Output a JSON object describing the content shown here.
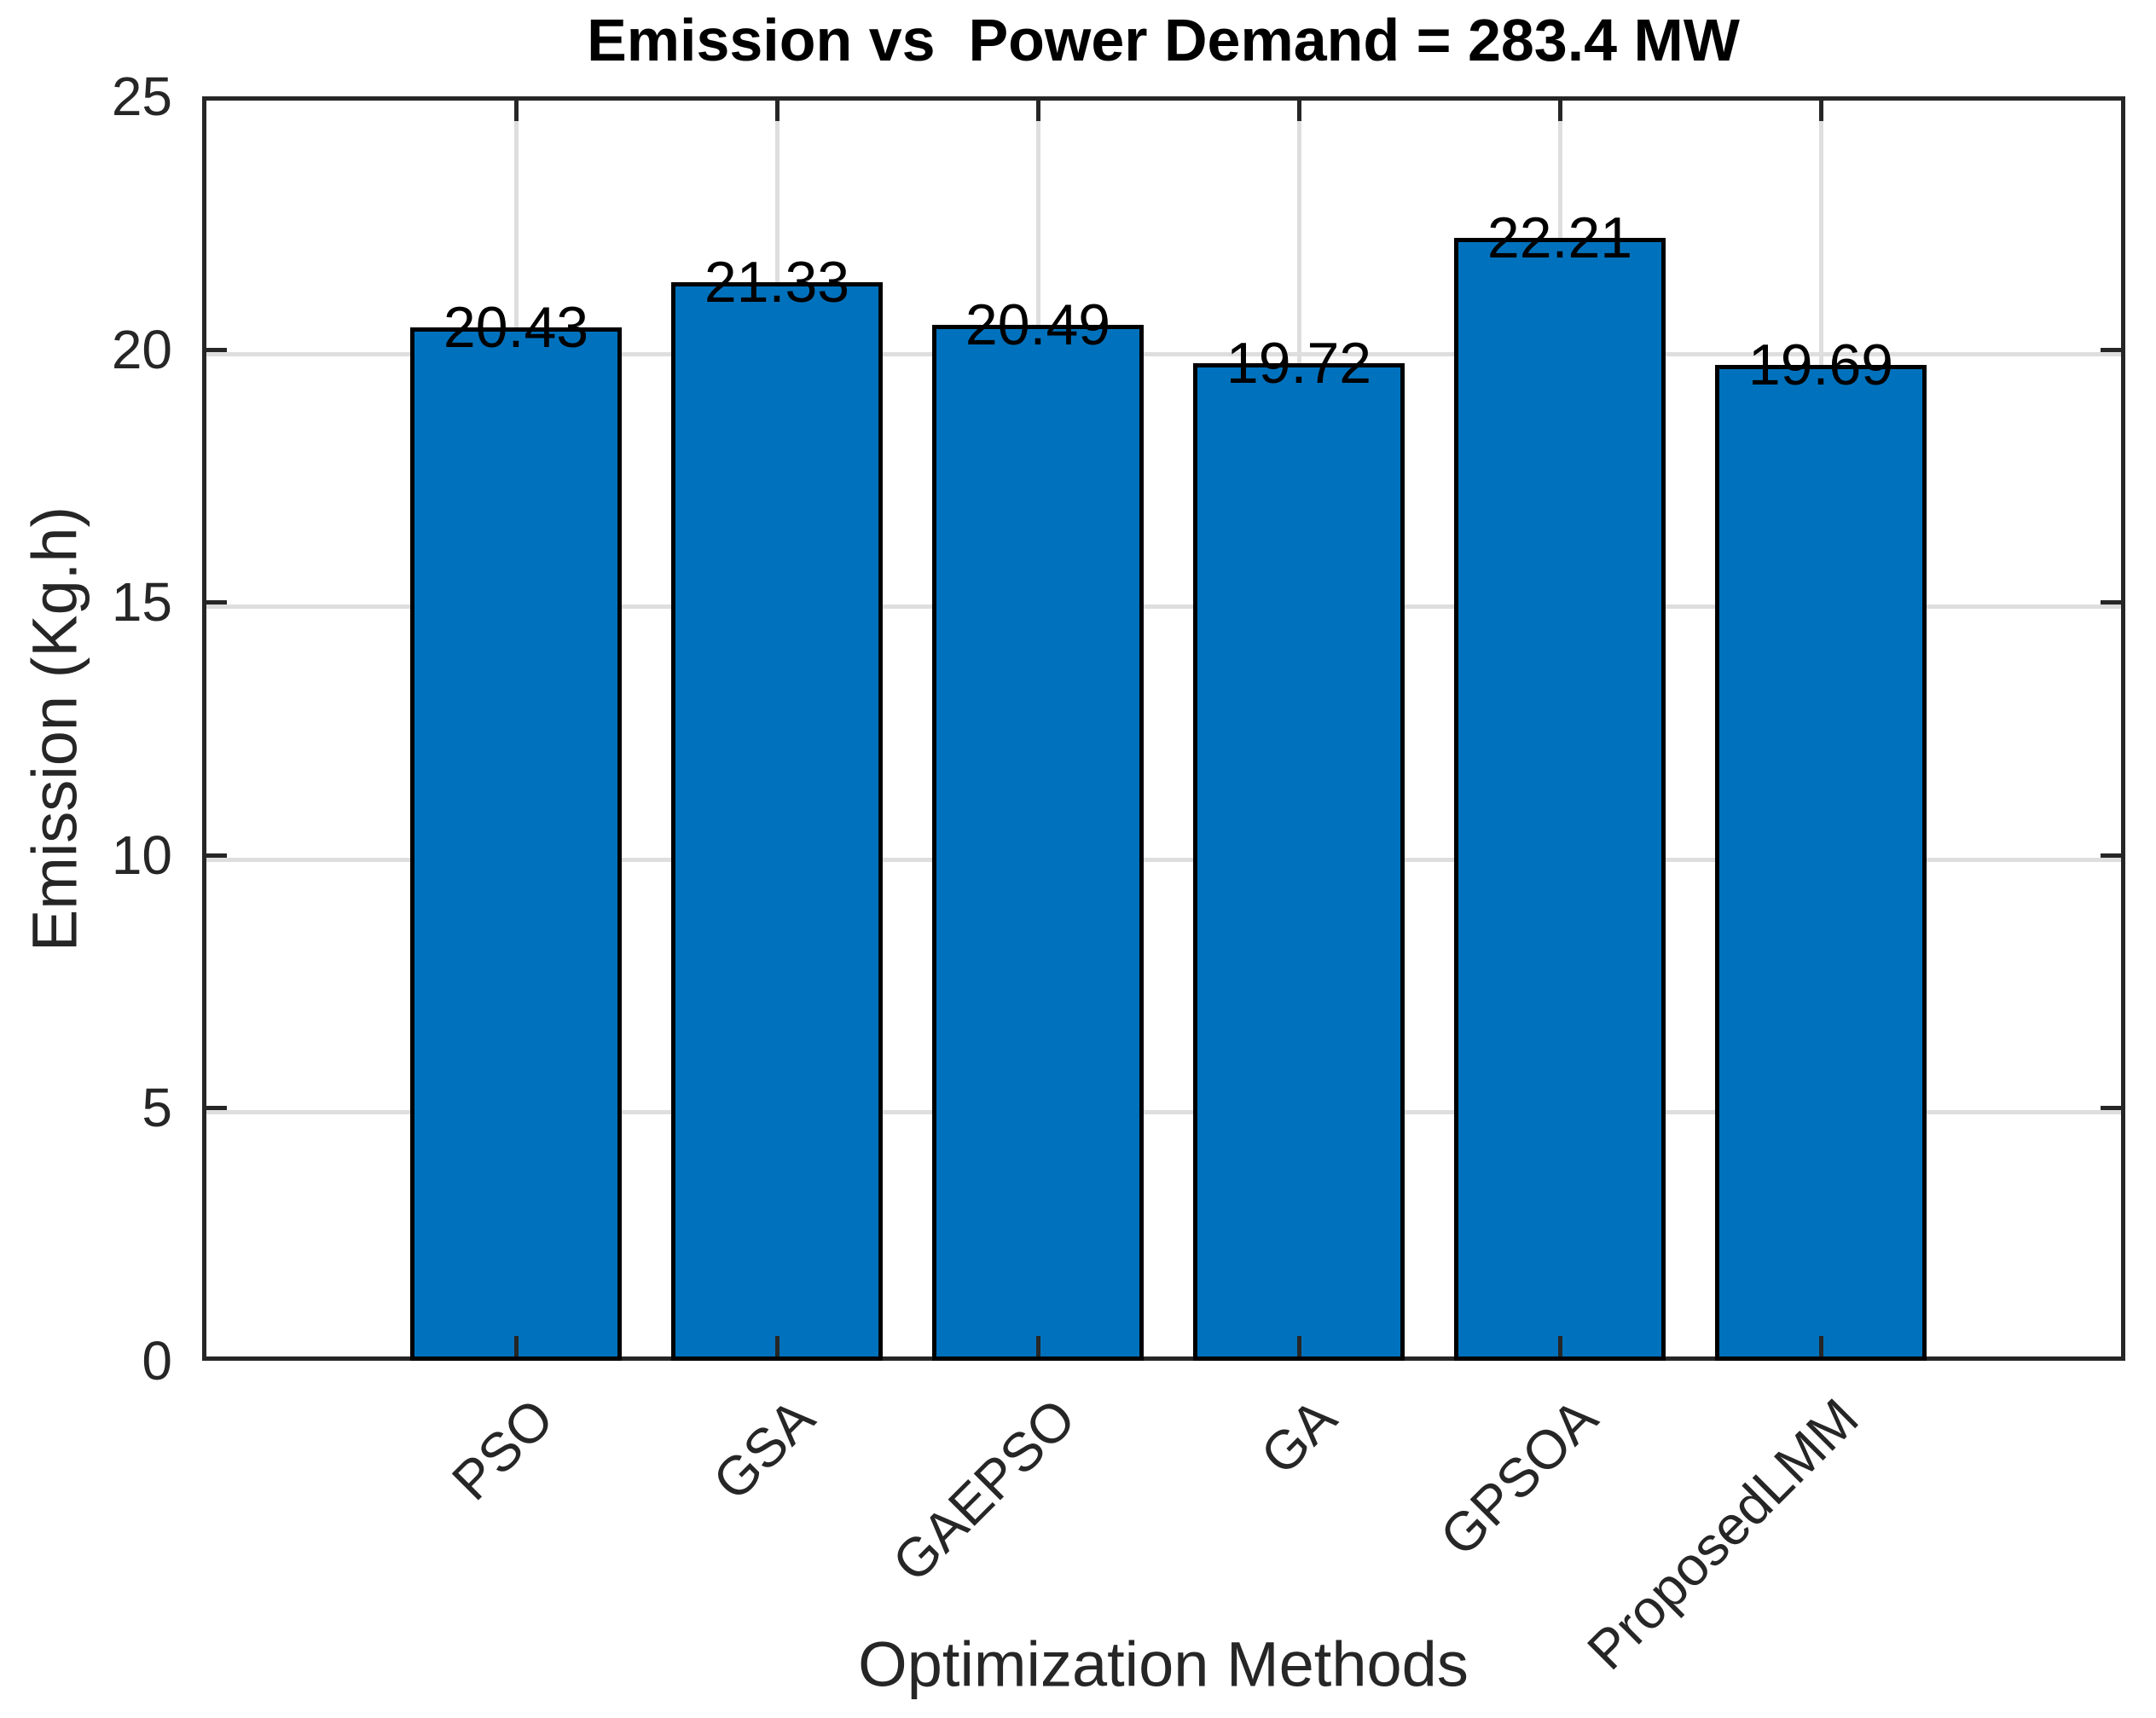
{
  "title": "Emission vs  Power Demand = 283.4 MW",
  "chart_data": {
    "type": "bar",
    "title": "Emission vs  Power Demand = 283.4 MW",
    "categories": [
      "PSO",
      "GSA",
      "GAEPSO",
      "GA",
      "GPSOA",
      "ProposedLMM"
    ],
    "values": [
      20.43,
      21.33,
      20.49,
      19.72,
      22.21,
      19.69
    ],
    "value_labels": [
      "20.43",
      "21.33",
      "20.49",
      "19.72",
      "22.21",
      "19.69"
    ],
    "xlabel": "Optimization Methods",
    "ylabel": "Emission (Kg.h)",
    "ylim": [
      0,
      25
    ],
    "yticks": [
      0,
      5,
      10,
      15,
      20,
      25
    ],
    "ytick_labels": [
      "0",
      "5",
      "10",
      "15",
      "20",
      "25"
    ],
    "grid": true,
    "legend": "none",
    "xtick_rotation_deg": 45,
    "bar_color": "#0072BD",
    "bar_edge_color": "#000000",
    "grid_color": "#DEDEDE",
    "axis_color": "#262626",
    "title_color": "#000000"
  }
}
